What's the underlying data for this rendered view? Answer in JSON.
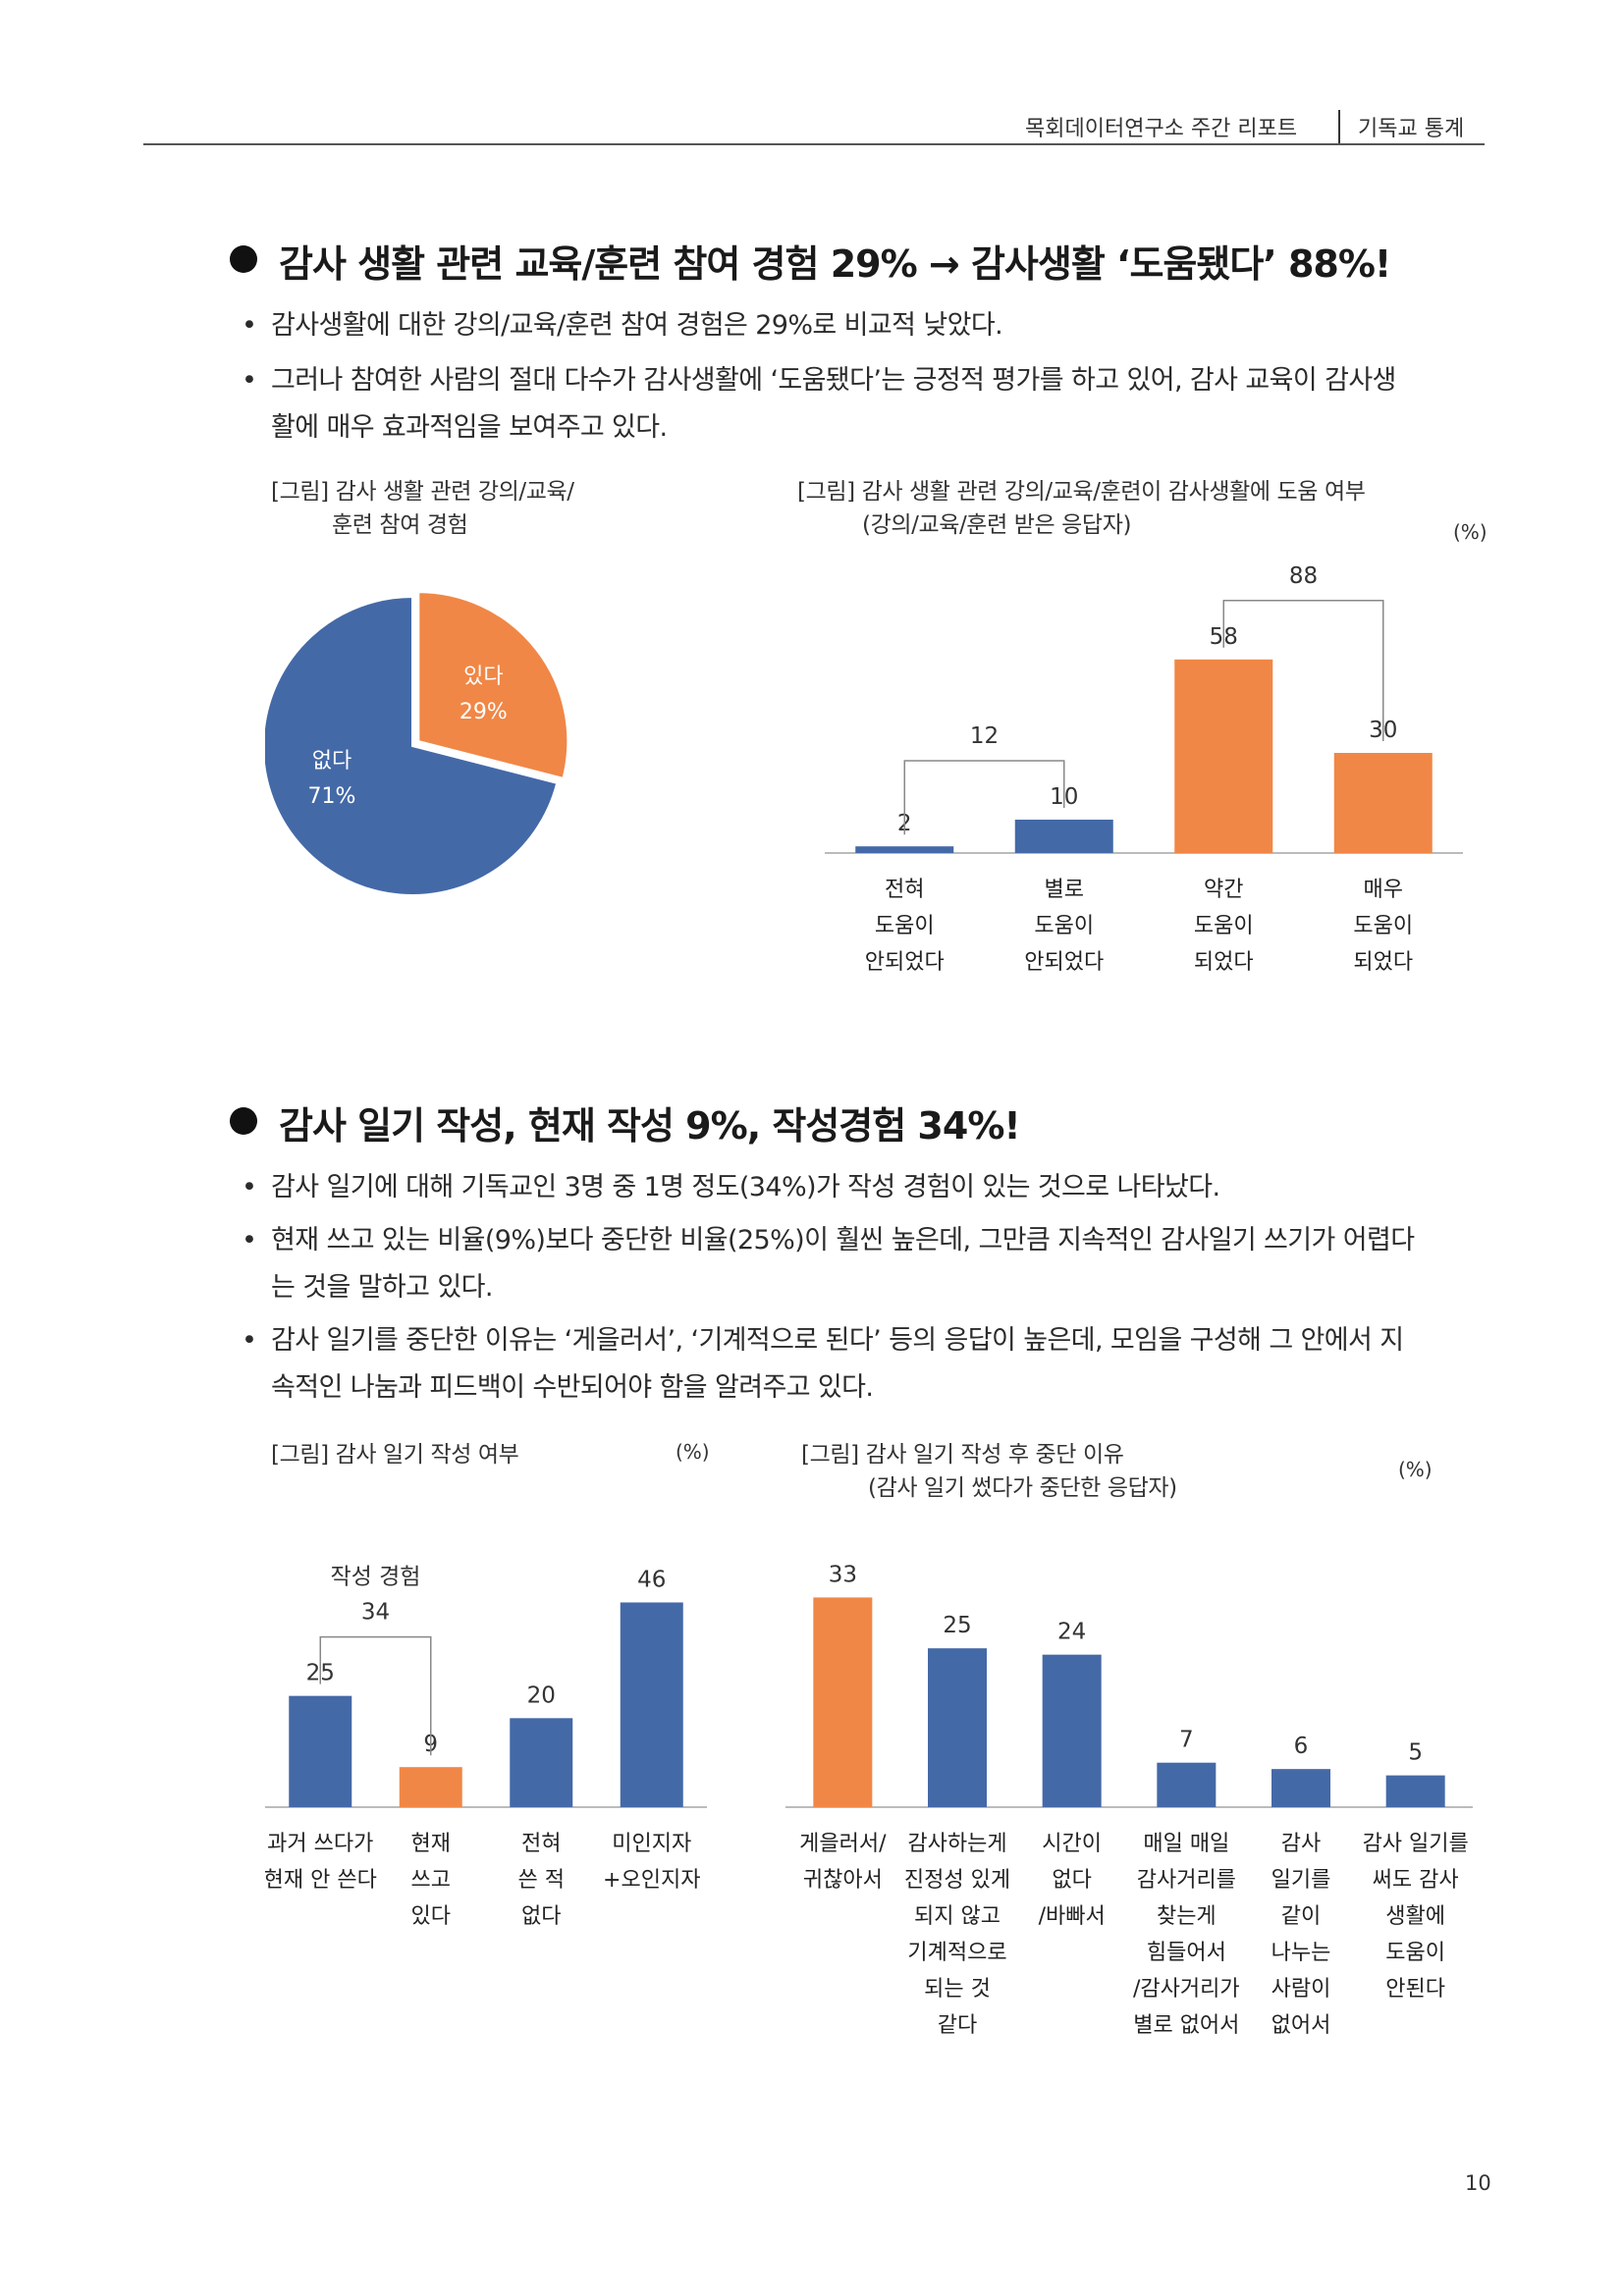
{
  "header": {
    "report": "목회데이터연구소 주간 리포트",
    "section": "기독교 통계"
  },
  "section1": {
    "title": "감사 생활 관련 교육/훈련 참여 경험 29% → 감사생활 ‘도움됐다’ 88%!",
    "bullets": [
      {
        "lines": [
          "감사생활에 대한 강의/교육/훈련 참여 경험은 29%로 비교적 낮았다."
        ]
      },
      {
        "lines": [
          "그러나 참여한 사람의 절대 다수가 감사생활에 ‘도움됐다’는 긍정적 평가를 하고 있어, 감사 교육이 감사생",
          "활에 매우 효과적임을 보여주고 있다."
        ]
      }
    ]
  },
  "fig1": {
    "caption_line1": "[그림] 감사 생활 관련 강의/교육/",
    "caption_line2": "훈련 참여 경험"
  },
  "fig2": {
    "caption_line1": "[그림] 감사 생활 관련 강의/교육/훈련이 감사생활에 도움 여부",
    "caption_line2": "(강의/교육/훈련 받은 응답자)",
    "unit": "(%)"
  },
  "section2": {
    "title": "감사 일기 작성, 현재 작성 9%, 작성경험 34%!",
    "bullets": [
      {
        "lines": [
          "감사 일기에 대해 기독교인 3명 중 1명 정도(34%)가 작성 경험이 있는 것으로 나타났다."
        ]
      },
      {
        "lines": [
          "현재 쓰고 있는 비율(9%)보다 중단한 비율(25%)이 훨씬 높은데, 그만큼 지속적인 감사일기 쓰기가 어렵다",
          "는 것을 말하고 있다."
        ]
      },
      {
        "lines": [
          "감사 일기를 중단한 이유는 ‘게을러서’, ‘기계적으로 된다’ 등의 응답이 높은데, 모임을 구성해 그 안에서 지",
          "속적인 나눔과 피드백이 수반되어야 함을 알려주고 있다."
        ]
      }
    ]
  },
  "fig3": {
    "caption_line1": "[그림] 감사 일기 작성 여부",
    "unit": "(%)"
  },
  "fig4": {
    "caption_line1": "[그림] 감사 일기 작성 후 중단 이유",
    "caption_line2": "(감사 일기 썼다가 중단한 응답자)",
    "unit": "(%)"
  },
  "page_number": "10",
  "colors": {
    "blue": "#4469a7",
    "orange": "#f08746"
  },
  "chart_data": [
    {
      "type": "pie",
      "slices": [
        {
          "label": "있다",
          "value": 29,
          "value_label": "29%",
          "color": "#f08746"
        },
        {
          "label": "없다",
          "value": 71,
          "value_label": "71%",
          "color": "#4469a7"
        }
      ]
    },
    {
      "type": "bar",
      "categories": [
        [
          "전혀",
          "도움이",
          "안되었다"
        ],
        [
          "별로",
          "도움이",
          "안되었다"
        ],
        [
          "약간",
          "도움이",
          "되었다"
        ],
        [
          "매우",
          "도움이",
          "되었다"
        ]
      ],
      "values": [
        2,
        10,
        58,
        30
      ],
      "colors": [
        "#4469a7",
        "#4469a7",
        "#f08746",
        "#f08746"
      ],
      "ylim": [
        0,
        100
      ],
      "brackets": [
        {
          "from": 0,
          "to": 1,
          "label": "12"
        },
        {
          "from": 2,
          "to": 3,
          "label": "88"
        }
      ]
    },
    {
      "type": "bar",
      "categories": [
        [
          "과거 쓰다가",
          "현재 안 쓴다"
        ],
        [
          "현재",
          "쓰고",
          "있다"
        ],
        [
          "전혀",
          "쓴 적",
          "없다"
        ],
        [
          "미인지자",
          "+오인지자"
        ]
      ],
      "values": [
        25,
        9,
        20,
        46
      ],
      "colors": [
        "#4469a7",
        "#f08746",
        "#4469a7",
        "#4469a7"
      ],
      "ylim": [
        0,
        75
      ],
      "brackets": [
        {
          "from": 0,
          "to": 1,
          "title": "작성 경험",
          "label": "34"
        }
      ]
    },
    {
      "type": "bar",
      "categories": [
        [
          "게을러서/",
          "귀찮아서"
        ],
        [
          "감사하는게",
          "진정성 있게",
          "되지 않고",
          "기계적으로",
          "되는 것",
          "같다"
        ],
        [
          "시간이",
          "없다",
          "/바빠서"
        ],
        [
          "매일 매일",
          "감사거리를",
          "찾는게",
          "힘들어서",
          "/감사거리가",
          "별로 없어서"
        ],
        [
          "감사",
          "일기를",
          "같이",
          "나누는",
          "사람이",
          "없어서"
        ],
        [
          "감사 일기를",
          "써도 감사",
          "생활에",
          "도움이",
          "안된다"
        ]
      ],
      "values": [
        33,
        25,
        24,
        7,
        6,
        5
      ],
      "colors": [
        "#f08746",
        "#4469a7",
        "#4469a7",
        "#4469a7",
        "#4469a7",
        "#4469a7"
      ],
      "ylim": [
        0,
        55
      ]
    }
  ]
}
